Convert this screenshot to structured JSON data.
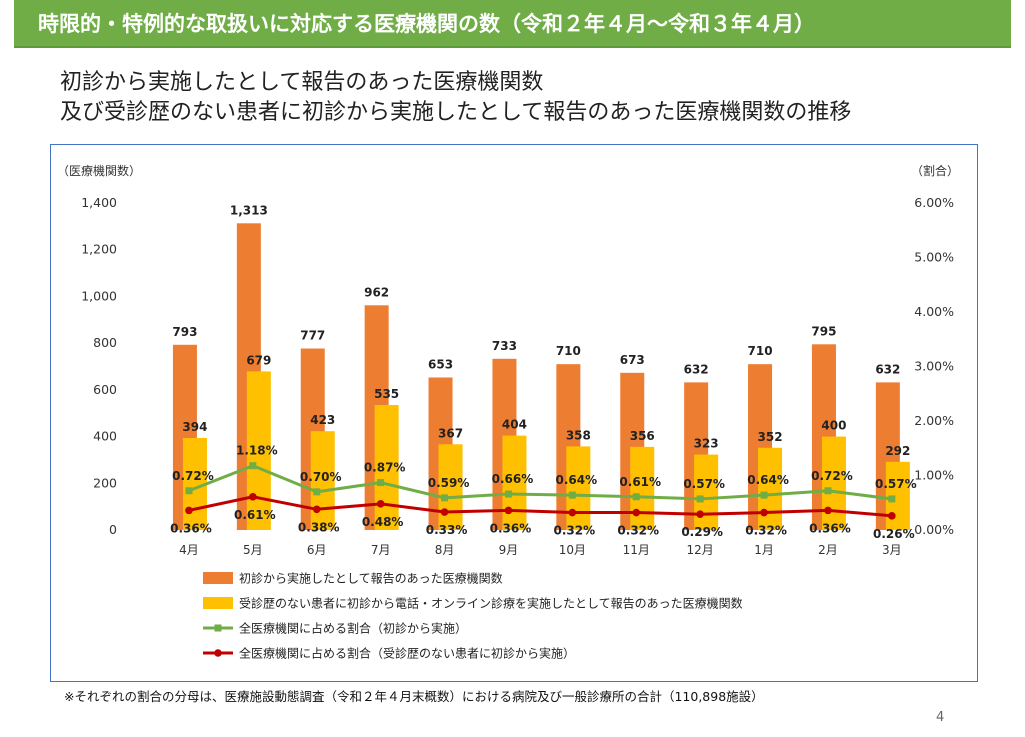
{
  "header": {
    "title": "時限的・特例的な取扱いに対応する医療機関の数（令和２年４月～令和３年４月）"
  },
  "subtitle": {
    "line1": "初診から実施したとして報告のあった医療機関数",
    "line2": "及び受診歴のない患者に初診から実施したとして報告のあった医療機関数の推移"
  },
  "chart_data": {
    "type": "bar",
    "categories": [
      "4月",
      "5月",
      "6月",
      "7月",
      "8月",
      "9月",
      "10月",
      "11月",
      "12月",
      "1月",
      "2月",
      "3月"
    ],
    "y_left": {
      "label": "（医療機関数）",
      "range": [
        0,
        1400
      ],
      "ticks": [
        "0",
        "200",
        "400",
        "600",
        "800",
        "1,000",
        "1,200",
        "1,400"
      ],
      "tick_values": [
        0,
        200,
        400,
        600,
        800,
        1000,
        1200,
        1400
      ]
    },
    "y_right": {
      "label": "（割合）",
      "range": [
        0,
        6
      ],
      "ticks": [
        "0.00%",
        "1.00%",
        "2.00%",
        "3.00%",
        "4.00%",
        "5.00%",
        "6.00%"
      ],
      "tick_values": [
        0,
        1,
        2,
        3,
        4,
        5,
        6
      ]
    },
    "series": [
      {
        "name": "初診から実施したとして報告のあった医療機関数",
        "kind": "bar",
        "color": "#ed7d31",
        "values": [
          793,
          1313,
          777,
          962,
          653,
          733,
          710,
          673,
          632,
          710,
          795,
          632
        ],
        "labels": [
          "793",
          "1,313",
          "777",
          "962",
          "653",
          "733",
          "710",
          "673",
          "632",
          "710",
          "795",
          "632"
        ]
      },
      {
        "name": "受診歴のない患者に初診から電話・オンライン診療を実施したとして報告のあった医療機関数",
        "kind": "bar",
        "color": "#ffc000",
        "values": [
          394,
          679,
          423,
          535,
          367,
          404,
          358,
          356,
          323,
          352,
          400,
          292
        ],
        "labels": [
          "394",
          "679",
          "423",
          "535",
          "367",
          "404",
          "358",
          "356",
          "323",
          "352",
          "400",
          "292"
        ]
      },
      {
        "name": "全医療機関に占める割合（初診から実施）",
        "kind": "line",
        "color": "#70ad47",
        "values": [
          0.72,
          1.18,
          0.7,
          0.87,
          0.59,
          0.66,
          0.64,
          0.61,
          0.57,
          0.64,
          0.72,
          0.57
        ],
        "labels": [
          "0.72%",
          "1.18%",
          "0.70%",
          "0.87%",
          "0.59%",
          "0.66%",
          "0.64%",
          "0.61%",
          "0.57%",
          "0.64%",
          "0.72%",
          "0.57%"
        ]
      },
      {
        "name": "全医療機関に占める割合（受診歴のない患者に初診から実施）",
        "kind": "line",
        "color": "#c00000",
        "values": [
          0.36,
          0.61,
          0.38,
          0.48,
          0.33,
          0.36,
          0.32,
          0.32,
          0.29,
          0.32,
          0.36,
          0.26
        ],
        "labels": [
          "0.36%",
          "0.61%",
          "0.38%",
          "0.48%",
          "0.33%",
          "0.36%",
          "0.32%",
          "0.32%",
          "0.29%",
          "0.32%",
          "0.36%",
          "0.26%"
        ]
      }
    ],
    "legend_position": "bottom",
    "grid": false
  },
  "footnote": "※それぞれの割合の分母は、医療施設動態調査（令和２年４月末概数）における病院及び一般診療所の合計（110,898施設）",
  "page_number": "4"
}
